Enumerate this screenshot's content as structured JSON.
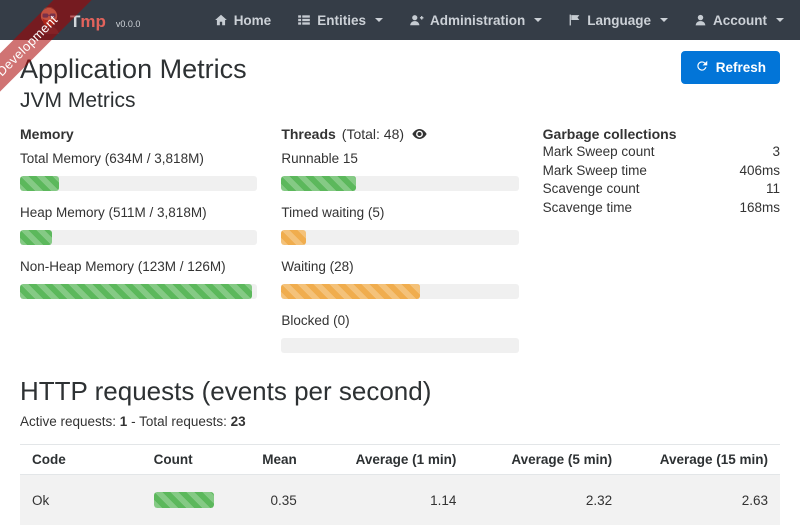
{
  "brand": {
    "title_first": "T",
    "title_rest": "mp",
    "version": "v0.0.0"
  },
  "ribbon": {
    "label": "Development"
  },
  "nav": {
    "home": "Home",
    "entities": "Entities",
    "administration": "Administration",
    "language": "Language",
    "account": "Account"
  },
  "page": {
    "title": "Application Metrics",
    "refresh": "Refresh"
  },
  "jvm": {
    "title": "JVM Metrics",
    "memory": {
      "heading": "Memory",
      "items": [
        {
          "label": "Total Memory (634M / 3,818M)",
          "percent": 16.6,
          "color": "green"
        },
        {
          "label": "Heap Memory (511M / 3,818M)",
          "percent": 13.4,
          "color": "green"
        },
        {
          "label": "Non-Heap Memory (123M / 126M)",
          "percent": 97.6,
          "color": "green"
        }
      ]
    },
    "threads": {
      "heading_bold": "Threads",
      "heading_rest": "(Total: 48)",
      "items": [
        {
          "label": "Runnable 15",
          "percent": 31.3,
          "color": "green"
        },
        {
          "label": "Timed waiting (5)",
          "percent": 10.4,
          "color": "orange"
        },
        {
          "label": "Waiting (28)",
          "percent": 58.3,
          "color": "orange"
        },
        {
          "label": "Blocked (0)",
          "percent": 0,
          "color": "green"
        }
      ]
    },
    "gc": {
      "heading": "Garbage collections",
      "rows": [
        {
          "label": "Mark Sweep count",
          "value": "3"
        },
        {
          "label": "Mark Sweep time",
          "value": "406ms"
        },
        {
          "label": "Scavenge count",
          "value": "11"
        },
        {
          "label": "Scavenge time",
          "value": "168ms"
        }
      ]
    }
  },
  "http": {
    "title": "HTTP requests (events per second)",
    "active_label": "Active requests: ",
    "active_value": "1",
    "total_label": " - Total requests: ",
    "total_value": "23",
    "table": {
      "headers": [
        "Code",
        "Count",
        "Mean",
        "Average (1 min)",
        "Average (5 min)",
        "Average (15 min)"
      ],
      "rows": [
        {
          "code": "Ok",
          "count_percent": 100,
          "count_color": "green",
          "mean": "0.35",
          "avg_1min": "1.14",
          "avg_5min": "2.32",
          "avg_15min": "2.63"
        }
      ]
    }
  },
  "colors": {
    "navbar": "#353d47",
    "accent": "#0275d8",
    "success": "#5cb85c",
    "warning": "#f0ad4e",
    "ribbon": "rgba(170,0,0,0.55)"
  }
}
